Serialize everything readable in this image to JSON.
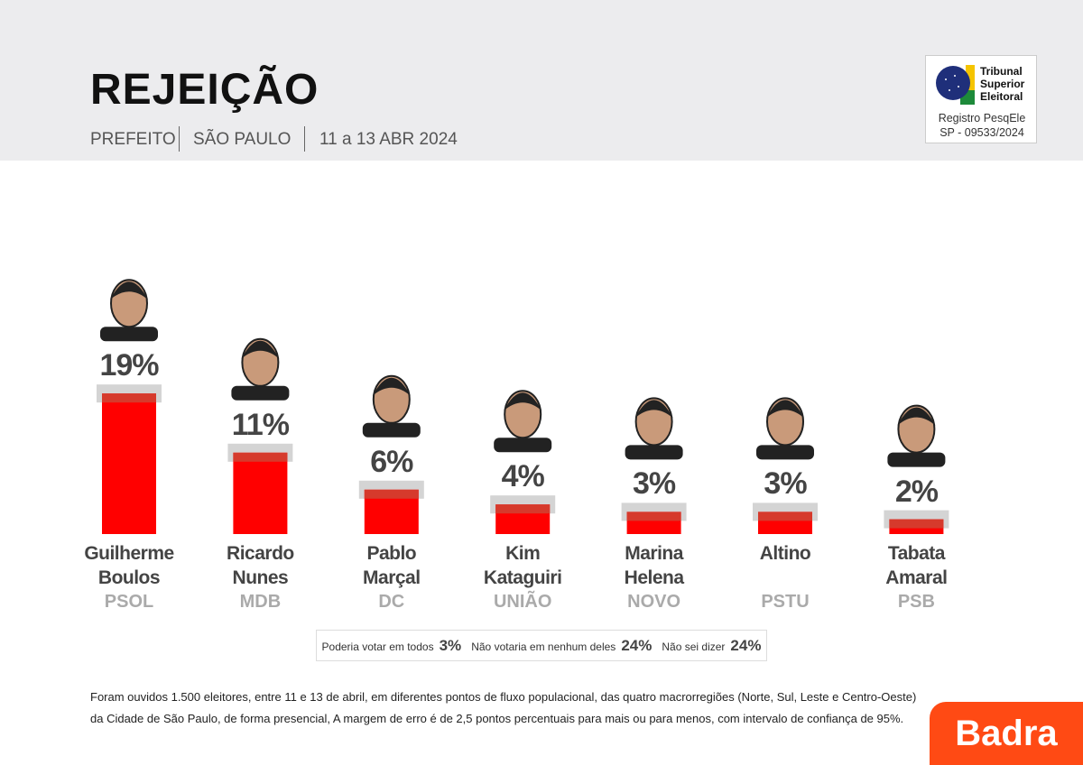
{
  "header": {
    "title": "REJEIÇÃO",
    "subtitle": [
      "PREFEITO",
      "SÃO PAULO",
      "11 a 13 ABR 2024"
    ]
  },
  "registration": {
    "lines": [
      "Tribunal",
      "Superior",
      "Eleitoral"
    ],
    "label": "Registro PesqEle",
    "number": "SP - 09533/2024"
  },
  "chart_data": {
    "type": "bar",
    "categories": [
      "Guilherme Boulos",
      "Ricardo Nunes",
      "Pablo Marçal",
      "Kim Kataguiri",
      "Marina Helena",
      "Altino",
      "Tabata Amaral"
    ],
    "parties": [
      "PSOL",
      "MDB",
      "DC",
      "UNIÃO",
      "NOVO",
      "PSTU",
      "PSB"
    ],
    "values": [
      19,
      11,
      6,
      4,
      3,
      3,
      2
    ],
    "value_labels": [
      "19%",
      "11%",
      "6%",
      "4%",
      "3%",
      "3%",
      "2%"
    ],
    "color": "#ff0000"
  },
  "other_options": [
    {
      "label": "Poderia votar em todos",
      "value": "3%"
    },
    {
      "label": "Não votaria em nenhum deles",
      "value": "24%"
    },
    {
      "label": "Não sei dizer",
      "value": "24%"
    }
  ],
  "footnote": [
    "Foram ouvidos 1.500 eleitores, entre 11 e 13 de abril, em diferentes pontos de fluxo populacional, das quatro macrorregiões (Norte, Sul, Leste e Centro-Oeste)",
    "da Cidade de São Paulo, de forma presencial, A margem de erro é de 2,5 pontos percentuais para mais ou para menos, com intervalo de confiança de 95%."
  ],
  "logo": "Badra"
}
